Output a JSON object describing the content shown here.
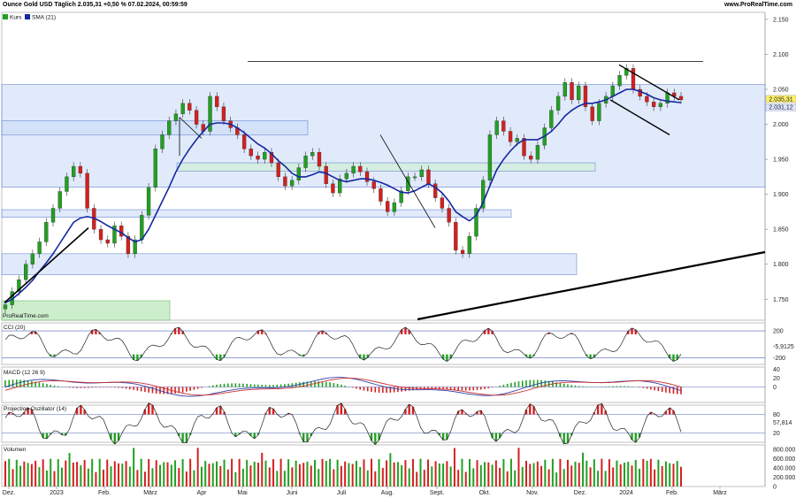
{
  "header": {
    "title": "Ounce Gold USD Täglich 2.035,31 +0,50 % 07.02.2024, 00:59:59",
    "source": "www.ProRealTime.com"
  },
  "watermark": "ProRealTime.com",
  "colors": {
    "up": "#22a022",
    "down": "#d42020",
    "sma": "#1428a0",
    "zone": "#c8d8f8",
    "zone_border": "#5577cc",
    "zone_green": "#cdeecd"
  },
  "chart_data": [
    {
      "type": "candlestick",
      "name": "price",
      "legend": [
        "Kurs",
        "SMA (21)"
      ],
      "ylim": [
        1720,
        2160
      ],
      "yticks": [
        "2.150",
        "2.100",
        "2.050",
        "2.000",
        "1.950",
        "1.900",
        "1.850",
        "1.800",
        "1.750"
      ],
      "ytick_values": [
        2150,
        2100,
        2050,
        2000,
        1950,
        1900,
        1850,
        1800,
        1750
      ],
      "last_price": "2.035,31",
      "sma_value": "2.031,12",
      "closes": [
        1742,
        1761,
        1778,
        1800,
        1815,
        1832,
        1860,
        1880,
        1904,
        1925,
        1940,
        1930,
        1880,
        1850,
        1835,
        1830,
        1855,
        1840,
        1815,
        1835,
        1870,
        1910,
        1965,
        1985,
        2005,
        2015,
        2030,
        2020,
        2000,
        1990,
        2040,
        2025,
        2005,
        1995,
        1985,
        1965,
        1955,
        1950,
        1960,
        1945,
        1925,
        1912,
        1920,
        1938,
        1955,
        1960,
        1940,
        1915,
        1902,
        1922,
        1930,
        1940,
        1932,
        1918,
        1908,
        1890,
        1875,
        1888,
        1905,
        1925,
        1925,
        1935,
        1915,
        1895,
        1880,
        1860,
        1820,
        1815,
        1840,
        1880,
        1920,
        1985,
        2005,
        1990,
        1975,
        1980,
        1955,
        1950,
        1970,
        1995,
        2020,
        2040,
        2060,
        2035,
        2055,
        2025,
        2005,
        2030,
        2040,
        2055,
        2070,
        2080,
        2050,
        2040,
        2032,
        2025,
        2030,
        2045,
        2040,
        2035
      ],
      "sma": [
        1745,
        1750,
        1758,
        1767,
        1777,
        1790,
        1802,
        1815,
        1830,
        1845,
        1860,
        1866,
        1868,
        1866,
        1861,
        1855,
        1850,
        1845,
        1838,
        1832,
        1835,
        1850,
        1870,
        1890,
        1910,
        1932,
        1950,
        1965,
        1978,
        1990,
        2000,
        2002,
        2002,
        2000,
        1995,
        1988,
        1980,
        1972,
        1966,
        1958,
        1948,
        1940,
        1930,
        1925,
        1925,
        1928,
        1932,
        1930,
        1925,
        1920,
        1918,
        1920,
        1922,
        1922,
        1920,
        1917,
        1913,
        1908,
        1903,
        1902,
        1905,
        1910,
        1915,
        1910,
        1902,
        1890,
        1875,
        1868,
        1862,
        1870,
        1888,
        1912,
        1935,
        1950,
        1962,
        1972,
        1978,
        1978,
        1978,
        1983,
        1990,
        2000,
        2012,
        2020,
        2026,
        2030,
        2030,
        2032,
        2035,
        2040,
        2045,
        2050,
        2050,
        2047,
        2043,
        2038,
        2035,
        2033,
        2032,
        2031
      ]
    },
    {
      "type": "line",
      "name": "CCI (20)",
      "yticks": [
        "200",
        "-200"
      ],
      "ytick_values": [
        200,
        -200
      ],
      "ylim": [
        -300,
        320
      ],
      "last_value": "-5,9125"
    },
    {
      "type": "line",
      "name": "MACD (12 26 9)",
      "yticks": [
        "40",
        "20",
        "0"
      ],
      "ytick_values": [
        40,
        20,
        0
      ],
      "ylim": [
        -35,
        45
      ]
    },
    {
      "type": "line",
      "name": "Projection Oszillator (14)",
      "yticks": [
        "80",
        "20"
      ],
      "ytick_values": [
        80,
        20
      ],
      "ylim": [
        -10,
        110
      ],
      "last_value": "57,814"
    },
    {
      "type": "bar",
      "name": "Volumen",
      "yticks": [
        "800.000",
        "600.000",
        "400.000",
        "200.000",
        "0"
      ],
      "ytick_values": [
        800000,
        600000,
        400000,
        200000,
        0
      ],
      "ylim": [
        0,
        900000
      ]
    }
  ],
  "xaxis": {
    "labels": [
      "Dez.",
      "2023",
      "Feb.",
      "März",
      "Apr",
      "Mai",
      "Juni",
      "Juli",
      "Aug.",
      "Sept.",
      "Okt.",
      "Nov.",
      "Dez.",
      "2024",
      "Feb.",
      "März"
    ]
  }
}
